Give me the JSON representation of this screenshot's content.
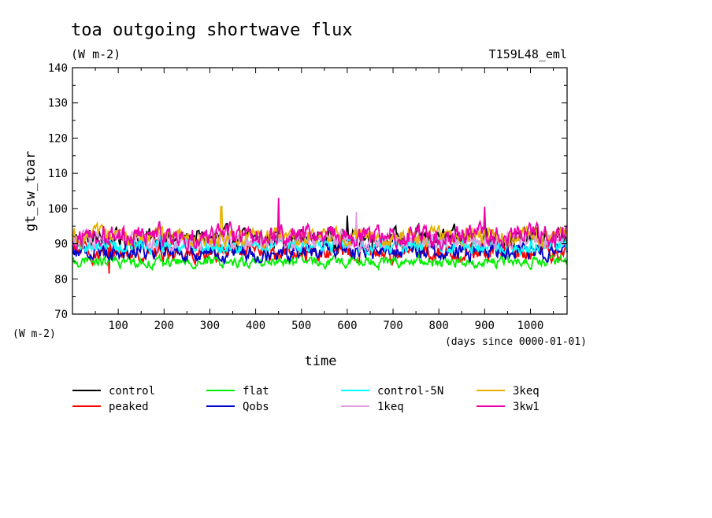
{
  "chart_data": {
    "type": "line",
    "title": "toa outgoing shortwave flux",
    "subtitle": "(W m-2)",
    "experiment": "T159L48_eml",
    "xlabel": "time",
    "x_units": "(days since 0000-01-01)",
    "ylabel": "gt_sw_toar",
    "y_units": "(W m-2)",
    "xlim": [
      0,
      1080
    ],
    "ylim": [
      70,
      140
    ],
    "x_ticks": [
      100,
      200,
      300,
      400,
      500,
      600,
      700,
      800,
      900,
      1000
    ],
    "y_ticks": [
      70,
      80,
      90,
      100,
      110,
      120,
      130,
      140
    ],
    "grid": false,
    "legend_position": "bottom",
    "series": [
      {
        "name": "control",
        "color": "#000000",
        "mean": 91.5,
        "amplitude": 2.2,
        "spikes": [
          [
            600,
            98
          ],
          [
            900,
            97.5
          ]
        ]
      },
      {
        "name": "peaked",
        "color": "#ff0000",
        "mean": 87.5,
        "amplitude": 2.0,
        "spikes": [
          [
            80,
            81.5
          ]
        ]
      },
      {
        "name": "flat",
        "color": "#00ee00",
        "mean": 84.8,
        "amplitude": 1.2,
        "spikes": []
      },
      {
        "name": "Qobs",
        "color": "#0000cc",
        "mean": 88.0,
        "amplitude": 2.0,
        "spikes": []
      },
      {
        "name": "control-5N",
        "color": "#00ffff",
        "mean": 89.5,
        "amplitude": 1.8,
        "spikes": []
      },
      {
        "name": "1keq",
        "color": "#dda0dd",
        "mean": 91.0,
        "amplitude": 2.0,
        "spikes": [
          [
            620,
            99
          ]
        ]
      },
      {
        "name": "3keq",
        "color": "#e6b000",
        "mean": 92.0,
        "amplitude": 2.0,
        "spikes": [
          [
            325,
            100.5
          ]
        ]
      },
      {
        "name": "3kw1",
        "color": "#ee00aa",
        "mean": 92.3,
        "amplitude": 2.5,
        "spikes": [
          [
            450,
            103
          ],
          [
            900,
            100.5
          ]
        ]
      }
    ]
  }
}
